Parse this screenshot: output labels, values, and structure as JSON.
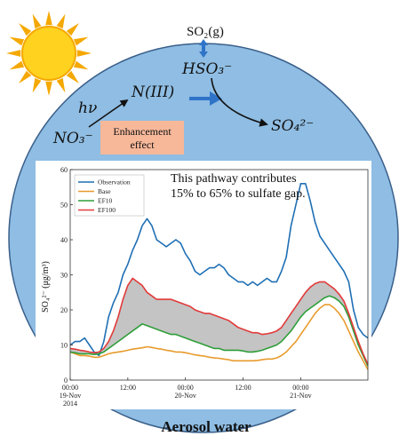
{
  "schematic": {
    "so2_gas": "SO₂(g)",
    "hso3": "HSO₃⁻",
    "so4": "SO₄²⁻",
    "niii": "N(III)",
    "hv": "hν",
    "no3": "NO₃⁻",
    "enhancement_line1": "Enhancement",
    "enhancement_line2": "effect",
    "aerosol_water": "Aerosol water"
  },
  "colors": {
    "droplet": "#8fbde3",
    "droplet_edge": "#3a5f8a",
    "arrow": "#2f74c9",
    "enhancement_box": "#f7b89a",
    "sun": "#f5a800",
    "sun_core": "#ffd21f",
    "shade": "#c4c4c4"
  },
  "chart_data": {
    "type": "line",
    "annotation_line1": "This pathway contributes",
    "annotation_line2": "15% to 65% to sulfate gap.",
    "ylabel": "SO₄²⁻ (μg/m³)",
    "ylim": [
      0,
      60
    ],
    "yticks": [
      "0",
      "10",
      "20",
      "30",
      "40",
      "50",
      "60"
    ],
    "xlim": [
      0,
      62
    ],
    "xticks": [
      {
        "x": 0,
        "time": "00:00",
        "date": "19-Nov",
        "year": "2014"
      },
      {
        "x": 12,
        "time": "12:00",
        "date": "",
        "year": ""
      },
      {
        "x": 24,
        "time": "00:00",
        "date": "20-Nov",
        "year": ""
      },
      {
        "x": 36,
        "time": "12:00",
        "date": "",
        "year": ""
      },
      {
        "x": 48,
        "time": "00:00",
        "date": "21-Nov",
        "year": ""
      }
    ],
    "x": [
      0,
      1,
      2,
      3,
      4,
      5,
      6,
      7,
      8,
      9,
      10,
      11,
      12,
      13,
      14,
      15,
      16,
      17,
      18,
      19,
      20,
      21,
      22,
      23,
      24,
      25,
      26,
      27,
      28,
      29,
      30,
      31,
      32,
      33,
      34,
      35,
      36,
      37,
      38,
      39,
      40,
      41,
      42,
      43,
      44,
      45,
      46,
      47,
      48,
      49,
      50,
      51,
      52,
      53,
      54,
      55,
      56,
      57,
      58,
      59,
      60,
      61,
      62
    ],
    "series": [
      {
        "name": "Observation",
        "color": "#1f6fb4",
        "values": [
          10,
          11,
          11,
          12,
          10,
          8,
          7,
          11,
          18,
          22,
          25,
          30,
          33,
          37,
          40,
          44,
          46,
          44,
          40,
          39,
          38,
          39,
          40,
          39,
          36,
          34,
          31,
          30,
          31,
          32,
          32,
          33,
          32,
          30,
          29,
          28,
          28,
          27,
          28,
          27,
          28,
          29,
          28,
          28,
          31,
          35,
          44,
          50,
          56,
          56,
          51,
          45,
          41,
          39,
          37,
          35,
          33,
          31,
          28,
          20,
          15,
          13,
          12
        ],
        "show_legend": true
      },
      {
        "name": "Base",
        "color": "#e89b2d",
        "values": [
          8,
          7.5,
          7,
          7,
          6.8,
          6.5,
          6.5,
          7,
          7.5,
          7.8,
          8,
          8.2,
          8.5,
          8.8,
          9,
          9.2,
          9.5,
          9.3,
          9,
          8.8,
          8.5,
          8.3,
          8,
          8,
          7.8,
          7.5,
          7.2,
          7,
          6.8,
          6.5,
          6.3,
          6.2,
          6,
          5.8,
          5.5,
          5.5,
          5.5,
          5.5,
          5.5,
          5.6,
          5.8,
          6,
          6,
          6.3,
          7,
          8,
          9.5,
          11,
          13,
          15,
          17,
          19,
          20.5,
          21.5,
          21.5,
          20.5,
          19,
          17,
          14,
          11,
          8,
          5.5,
          3
        ],
        "show_legend": true
      },
      {
        "name": "EF10",
        "color": "#2f9e3a",
        "values": [
          8,
          7.8,
          7.5,
          7.5,
          7.5,
          7.3,
          7.5,
          8,
          9,
          10,
          11,
          12,
          13,
          14,
          15,
          16,
          15.5,
          15,
          14.5,
          14,
          13.5,
          13,
          13,
          12.5,
          12,
          11.5,
          11,
          10.5,
          10,
          9.5,
          9,
          9,
          8.5,
          8.5,
          8.5,
          8.5,
          8.3,
          8,
          8,
          8.2,
          8.5,
          9,
          9.5,
          10,
          11,
          12.5,
          14,
          16,
          18,
          19.5,
          20.5,
          21.5,
          22.5,
          23.5,
          24,
          23.5,
          22.5,
          21,
          18,
          14,
          10,
          7,
          4
        ],
        "show_legend": true
      },
      {
        "name": "EF100",
        "color": "#e23a3a",
        "values": [
          9,
          8.8,
          8.5,
          8.3,
          8,
          7.8,
          8,
          9,
          11,
          14,
          18,
          23,
          27,
          29,
          28,
          27,
          25,
          24,
          23,
          23,
          23,
          23,
          22.5,
          22,
          21.5,
          21,
          20,
          19.5,
          19,
          19,
          18.5,
          18,
          17.5,
          17,
          16,
          15,
          14.5,
          14,
          13.5,
          13.5,
          13,
          13.2,
          13.5,
          14,
          15,
          17,
          19,
          21,
          23,
          25,
          26.5,
          27.5,
          28,
          28,
          27,
          26,
          24.5,
          22.5,
          19,
          15,
          11,
          7.5,
          4.5
        ],
        "show_legend": true
      }
    ],
    "shaded_between": [
      "EF10",
      "EF100"
    ]
  }
}
